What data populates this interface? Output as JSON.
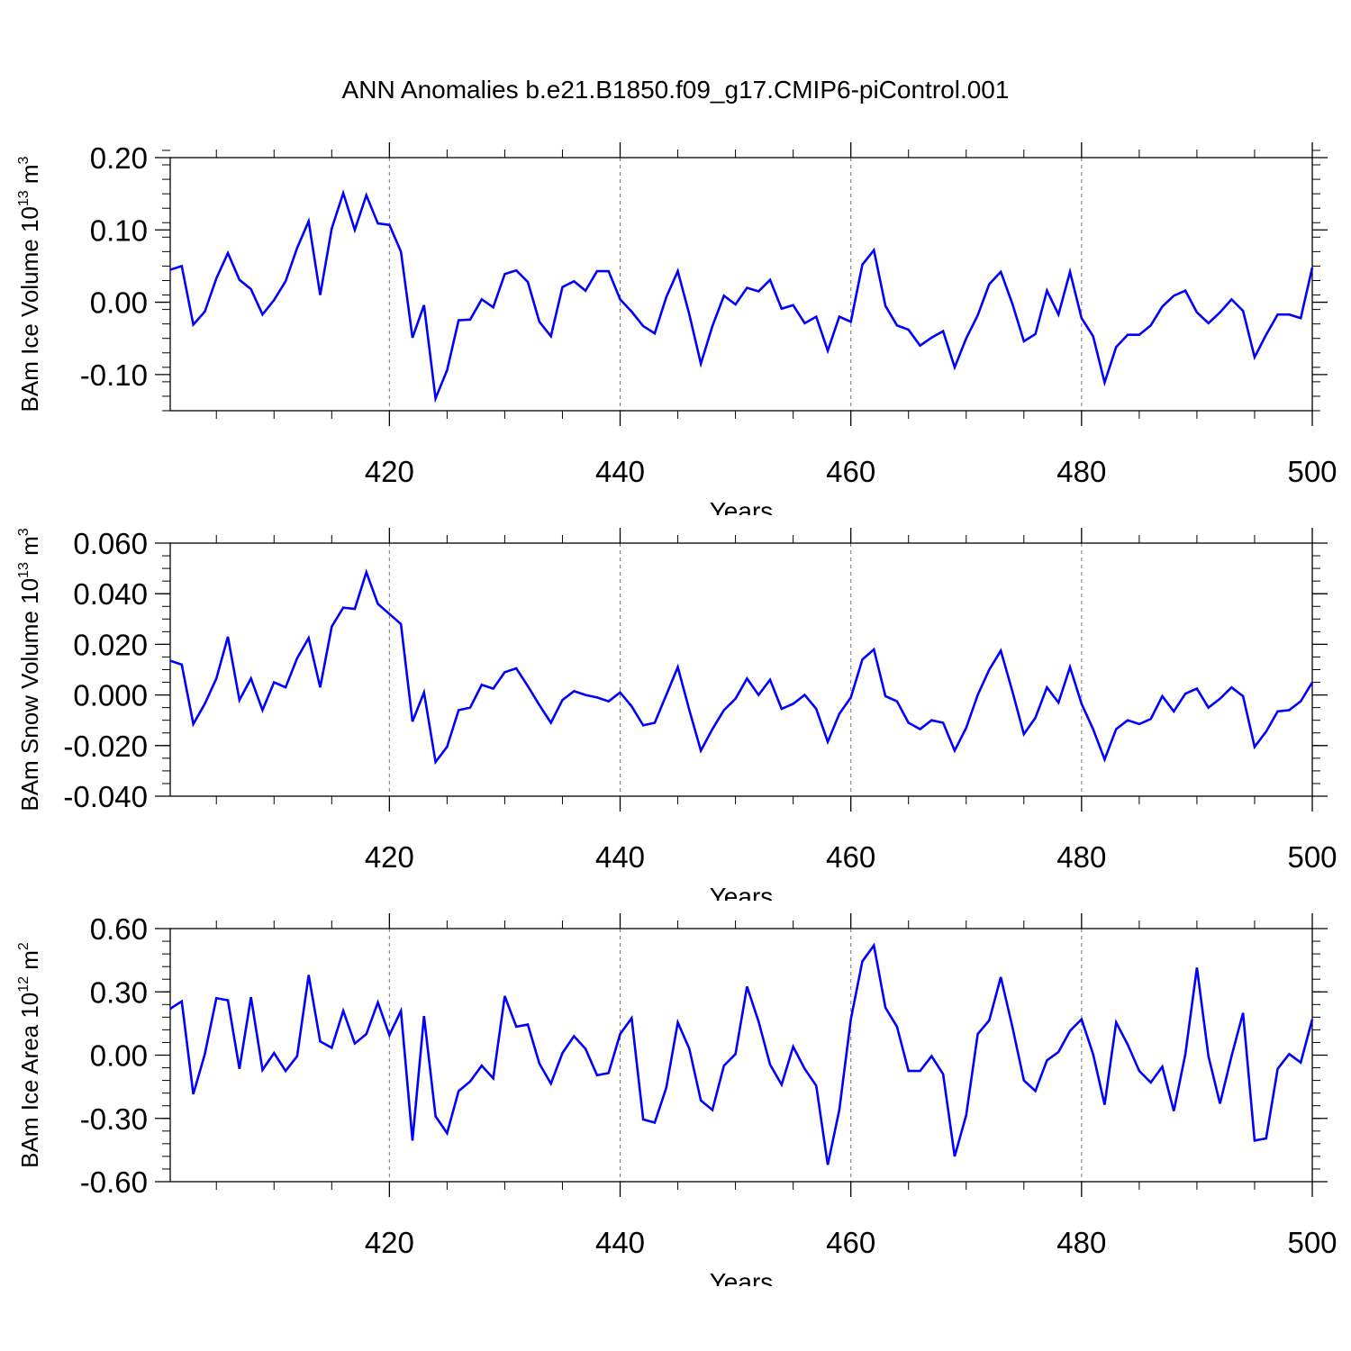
{
  "title": "ANN Anomalies b.e21.B1850.f09_g17.CMIP6-piControl.001",
  "chart_data": [
    {
      "type": "line",
      "title": "ANN Anomalies b.e21.B1850.f09_g17.CMIP6-piControl.001",
      "xlabel": "Years",
      "ylabel": {
        "main": "BAm Ice Volume 10",
        "exp": "13",
        "unit": " m",
        "unit_exp": "3"
      },
      "xlim": [
        401,
        500
      ],
      "ylim": [
        -0.15,
        0.2
      ],
      "x_ticks": [
        420,
        440,
        460,
        480,
        500
      ],
      "x_tick_labels": [
        "420",
        "440",
        "460",
        "480",
        "500"
      ],
      "y_ticks": [
        -0.1,
        0.0,
        0.1,
        0.2
      ],
      "y_tick_labels": [
        "-0.10",
        "0.00",
        "0.10",
        "0.20"
      ],
      "y_minor_step": 0.02,
      "grid": "vertical dashed at x ticks",
      "line_color": "#0000ff",
      "x_start": 401,
      "x_step": 1,
      "values": [
        0.045,
        0.05,
        -0.031,
        -0.013,
        0.033,
        0.068,
        0.031,
        0.018,
        -0.017,
        0.003,
        0.029,
        0.075,
        0.112,
        0.01,
        0.102,
        0.151,
        0.1,
        0.148,
        0.109,
        0.107,
        0.07,
        -0.049,
        -0.004,
        -0.133,
        -0.094,
        -0.025,
        -0.024,
        0.004,
        -0.007,
        0.039,
        0.044,
        0.028,
        -0.027,
        -0.047,
        0.021,
        0.029,
        0.016,
        0.043,
        0.043,
        0.004,
        -0.013,
        -0.033,
        -0.043,
        0.007,
        0.043,
        -0.017,
        -0.085,
        -0.033,
        0.009,
        -0.003,
        0.02,
        0.015,
        0.031,
        -0.009,
        -0.004,
        -0.029,
        -0.02,
        -0.067,
        -0.02,
        -0.027,
        0.052,
        0.072,
        -0.005,
        -0.032,
        -0.038,
        -0.06,
        -0.049,
        -0.04,
        -0.09,
        -0.05,
        -0.018,
        0.025,
        0.042,
        -0.002,
        -0.054,
        -0.044,
        0.016,
        -0.017,
        0.042,
        -0.022,
        -0.047,
        -0.111,
        -0.062,
        -0.045,
        -0.045,
        -0.032,
        -0.006,
        0.009,
        0.016,
        -0.014,
        -0.029,
        -0.014,
        0.004,
        -0.012,
        -0.076,
        -0.045,
        -0.017,
        -0.017,
        -0.022,
        0.048
      ]
    },
    {
      "type": "line",
      "xlabel": "Years",
      "ylabel": {
        "main": "BAm Snow Volume 10",
        "exp": "13",
        "unit": " m",
        "unit_exp": "3"
      },
      "xlim": [
        401,
        500
      ],
      "ylim": [
        -0.04,
        0.06
      ],
      "x_ticks": [
        420,
        440,
        460,
        480,
        500
      ],
      "x_tick_labels": [
        "420",
        "440",
        "460",
        "480",
        "500"
      ],
      "y_ticks": [
        -0.04,
        -0.02,
        0.0,
        0.02,
        0.04,
        0.06
      ],
      "y_tick_labels": [
        "-0.040",
        "-0.020",
        "0.000",
        "0.020",
        "0.040",
        "0.060"
      ],
      "y_minor_step": 0.005,
      "grid": "vertical dashed at x ticks",
      "line_color": "#0000ff",
      "x_start": 401,
      "x_step": 1,
      "values": [
        0.0135,
        0.012,
        -0.0115,
        -0.0035,
        0.0065,
        0.023,
        -0.002,
        0.0065,
        -0.006,
        0.005,
        0.003,
        0.0145,
        0.0225,
        0.003,
        0.027,
        0.0345,
        0.034,
        0.0485,
        0.036,
        0.032,
        0.028,
        -0.0105,
        0.001,
        -0.0265,
        -0.0205,
        -0.006,
        -0.005,
        0.004,
        0.0025,
        0.009,
        0.0105,
        0.0035,
        -0.004,
        -0.011,
        -0.002,
        0.0015,
        0.0,
        -0.001,
        -0.0025,
        0.001,
        -0.0045,
        -0.012,
        -0.011,
        0.0,
        0.011,
        -0.006,
        -0.022,
        -0.0135,
        -0.006,
        -0.0015,
        0.0065,
        0.0,
        0.006,
        -0.0055,
        -0.0035,
        0.0,
        -0.0055,
        -0.0185,
        -0.0075,
        -0.001,
        0.014,
        0.018,
        -0.0005,
        -0.0025,
        -0.011,
        -0.0135,
        -0.01,
        -0.011,
        -0.022,
        -0.013,
        0.0,
        0.01,
        0.0175,
        0.0015,
        -0.0155,
        -0.009,
        0.003,
        -0.003,
        0.011,
        -0.0035,
        -0.0135,
        -0.0255,
        -0.0135,
        -0.01,
        -0.0115,
        -0.0095,
        -0.0005,
        -0.0065,
        0.0005,
        0.0025,
        -0.005,
        -0.0015,
        0.003,
        -0.0005,
        -0.0205,
        -0.0145,
        -0.0065,
        -0.006,
        -0.0025,
        0.005
      ]
    },
    {
      "type": "line",
      "xlabel": "Years",
      "ylabel": {
        "main": "BAm Ice Area 10",
        "exp": "12",
        "unit": " m",
        "unit_exp": "2"
      },
      "xlim": [
        401,
        500
      ],
      "ylim": [
        -0.6,
        0.6
      ],
      "x_ticks": [
        420,
        440,
        460,
        480,
        500
      ],
      "x_tick_labels": [
        "420",
        "440",
        "460",
        "480",
        "500"
      ],
      "y_ticks": [
        -0.6,
        -0.3,
        0.0,
        0.3,
        0.6
      ],
      "y_tick_labels": [
        "-0.60",
        "-0.30",
        "0.00",
        "0.30",
        "0.60"
      ],
      "y_minor_step": 0.06,
      "grid": "vertical dashed at x ticks",
      "line_color": "#0000ff",
      "x_start": 401,
      "x_step": 1,
      "values": [
        0.22,
        0.255,
        -0.185,
        0.005,
        0.27,
        0.26,
        -0.065,
        0.275,
        -0.07,
        0.01,
        -0.075,
        -0.005,
        0.38,
        0.065,
        0.035,
        0.21,
        0.055,
        0.1,
        0.25,
        0.095,
        0.21,
        -0.405,
        0.185,
        -0.29,
        -0.37,
        -0.17,
        -0.125,
        -0.05,
        -0.11,
        0.28,
        0.135,
        0.145,
        -0.04,
        -0.135,
        0.01,
        0.09,
        0.03,
        -0.095,
        -0.085,
        0.1,
        0.175,
        -0.305,
        -0.32,
        -0.155,
        0.155,
        0.03,
        -0.215,
        -0.26,
        -0.05,
        0.005,
        0.325,
        0.16,
        -0.045,
        -0.14,
        0.04,
        -0.065,
        -0.145,
        -0.52,
        -0.26,
        0.17,
        0.445,
        0.52,
        0.225,
        0.135,
        -0.075,
        -0.075,
        -0.005,
        -0.09,
        -0.48,
        -0.285,
        0.1,
        0.165,
        0.37,
        0.135,
        -0.12,
        -0.17,
        -0.025,
        0.015,
        0.115,
        0.17,
        0.005,
        -0.235,
        0.155,
        0.05,
        -0.075,
        -0.13,
        -0.055,
        -0.265,
        0.005,
        0.415,
        -0.005,
        -0.23,
        -0.005,
        0.2,
        -0.405,
        -0.395,
        -0.065,
        0.005,
        -0.035,
        0.17
      ]
    }
  ]
}
